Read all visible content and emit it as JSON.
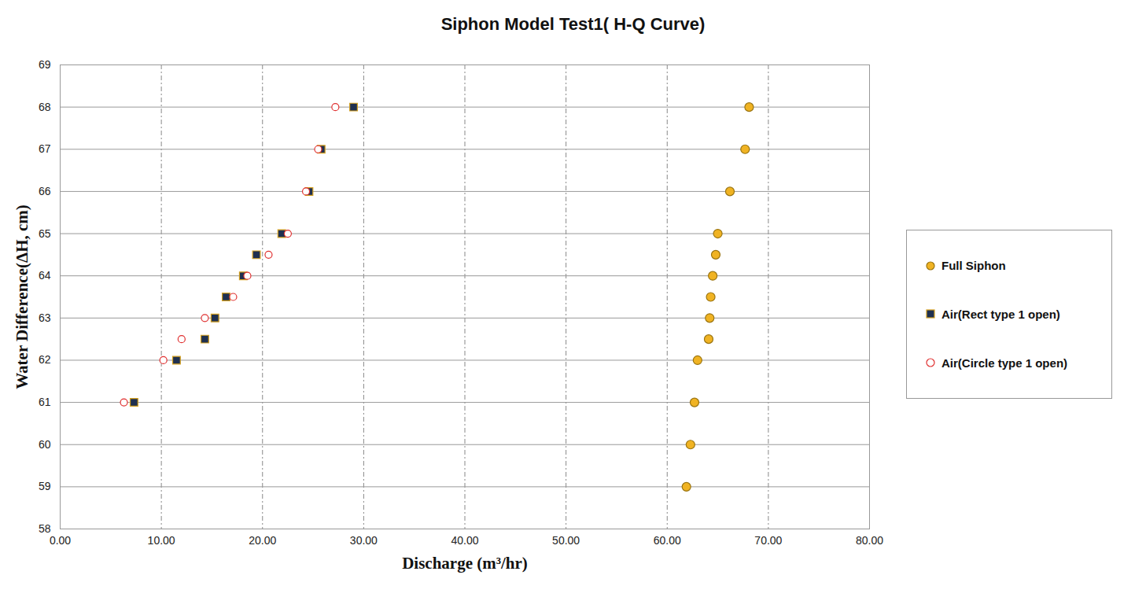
{
  "chart_data": {
    "type": "scatter",
    "title": "Siphon Model Test1( H-Q Curve)",
    "x_label": "Discharge (m³/hr)",
    "y_label": "Water Difference(ΔH, cm)",
    "xlim": [
      0,
      80
    ],
    "xticks": [
      {
        "value": 0,
        "label": "0.00"
      },
      {
        "value": 10,
        "label": "10.00"
      },
      {
        "value": 20,
        "label": "20.00"
      },
      {
        "value": 30,
        "label": "30.00"
      },
      {
        "value": 40,
        "label": "40.00"
      },
      {
        "value": 50,
        "label": "50.00"
      },
      {
        "value": 60,
        "label": "60.00"
      },
      {
        "value": 70,
        "label": "70.00"
      },
      {
        "value": 80,
        "label": "80.00"
      }
    ],
    "ylim": [
      58,
      69
    ],
    "yticks": [
      58,
      59,
      60,
      61,
      62,
      63,
      64,
      65,
      66,
      67,
      68,
      69
    ],
    "grid": true,
    "legend": "right",
    "series": [
      {
        "name": "Full Siphon",
        "color": "#f0b323",
        "marker": "circle",
        "x": [
          61.9,
          62.3,
          62.7,
          63.0,
          64.1,
          64.2,
          64.3,
          64.5,
          64.8,
          65.0,
          66.2,
          67.7,
          68.1
        ],
        "values": [
          59,
          60,
          61,
          62,
          62.5,
          63,
          63.5,
          64,
          64.5,
          65,
          66,
          67,
          68
        ]
      },
      {
        "name": "Air(Rect type 1 open)",
        "color": "#1f3050",
        "marker": "square",
        "x": [
          7.3,
          11.5,
          14.3,
          15.3,
          16.4,
          18.1,
          19.4,
          21.9,
          24.6,
          25.8,
          29.0
        ],
        "values": [
          61,
          62,
          62.5,
          63,
          63.5,
          64,
          64.5,
          65,
          66,
          67,
          68
        ]
      },
      {
        "name": "Air(Circle type 1 open)",
        "color": "#e03030",
        "marker": "open_circle",
        "x": [
          6.3,
          10.2,
          12.0,
          14.3,
          17.1,
          18.5,
          20.6,
          22.5,
          24.3,
          25.5,
          27.2
        ],
        "values": [
          61,
          62,
          62.5,
          63,
          63.5,
          64,
          64.5,
          65,
          66,
          67,
          68
        ]
      }
    ]
  }
}
